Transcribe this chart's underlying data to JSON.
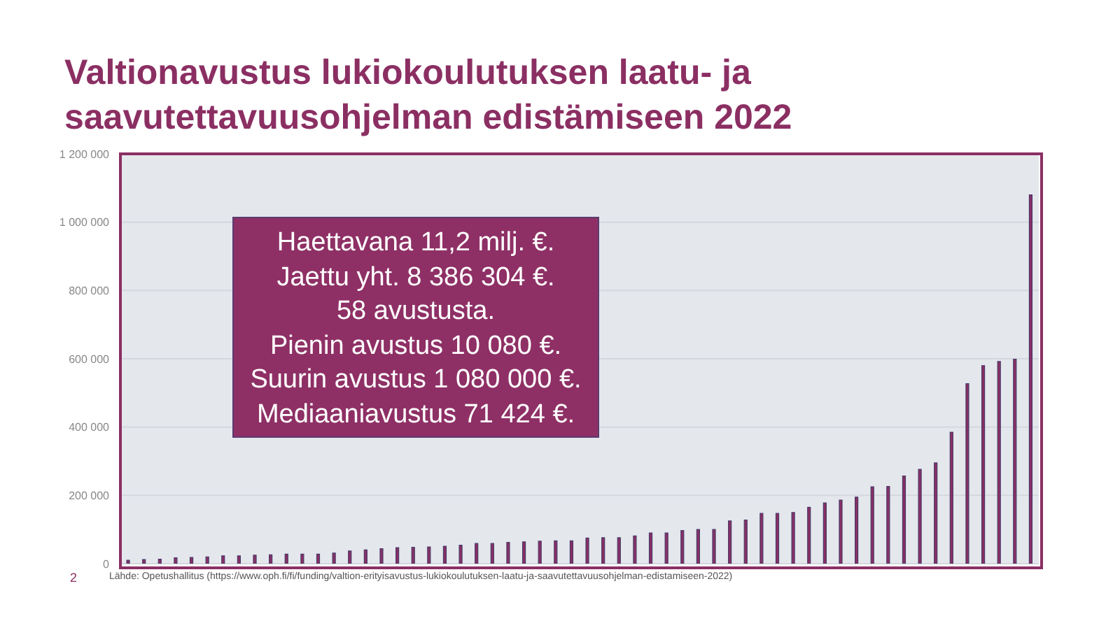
{
  "chart_data": {
    "type": "bar",
    "title": "Valtionavustus lukiokoulutuksen laatu- ja saavutettavuusohjelman edistämiseen 2022",
    "categories": [
      null,
      null,
      null,
      null,
      null,
      null,
      null,
      null,
      null,
      null,
      null,
      null,
      null,
      null,
      null,
      null,
      null,
      null,
      null,
      null,
      null,
      null,
      null,
      null,
      null,
      null,
      null,
      null,
      null,
      null,
      null,
      null,
      null,
      null,
      null,
      null,
      null,
      null,
      null,
      null,
      null,
      null,
      null,
      null,
      null,
      null,
      null,
      null,
      null,
      null,
      null,
      null,
      null,
      null,
      null,
      null,
      null,
      null
    ],
    "values": [
      10080,
      12000,
      13000,
      17000,
      18000,
      20000,
      23000,
      23000,
      25000,
      26000,
      28000,
      28000,
      28000,
      31000,
      37000,
      40000,
      44000,
      47000,
      48000,
      49000,
      51000,
      54000,
      59000,
      59000,
      62000,
      64000,
      66000,
      67000,
      67000,
      75000,
      76000,
      76000,
      81000,
      90000,
      90000,
      97000,
      100000,
      100000,
      125000,
      128000,
      147000,
      147000,
      150000,
      165000,
      178000,
      186000,
      195000,
      225000,
      226000,
      257000,
      276000,
      295000,
      385000,
      527000,
      580000,
      592000,
      599000,
      1080000
    ],
    "color": "#8b2f63",
    "ylim": [
      0,
      1200000
    ],
    "yticks": [
      0,
      {
        "value": 200000,
        "label": "200 000"
      },
      {
        "value": 400000,
        "label": "400 000"
      },
      {
        "value": 600000,
        "label": "600 000"
      },
      {
        "value": 800000,
        "label": "800 000"
      },
      {
        "value": 1000000,
        "label": "1 000 000"
      },
      {
        "value": 1200000,
        "label": "1 200 000"
      }
    ],
    "grid": "y",
    "tick_labels": "y",
    "annotations": [
      "Haettavana 11,2 milj. €.\nJaettu yht. 8 386 304 €.\n58 avustusta.\nPienin avustus 10 080 €.\nSuurin avustus 1 080 000 €.\nMediaaniavustus 71 424 €.",
      "Lähde: Opetushallitus (https://www.oph.fi/fi/funding/valtion-erityisavustus-lukiokoulutuksen-laatu-ja-saavutettavuusohjelman-edistamiseen-2022)",
      "2"
    ]
  }
}
